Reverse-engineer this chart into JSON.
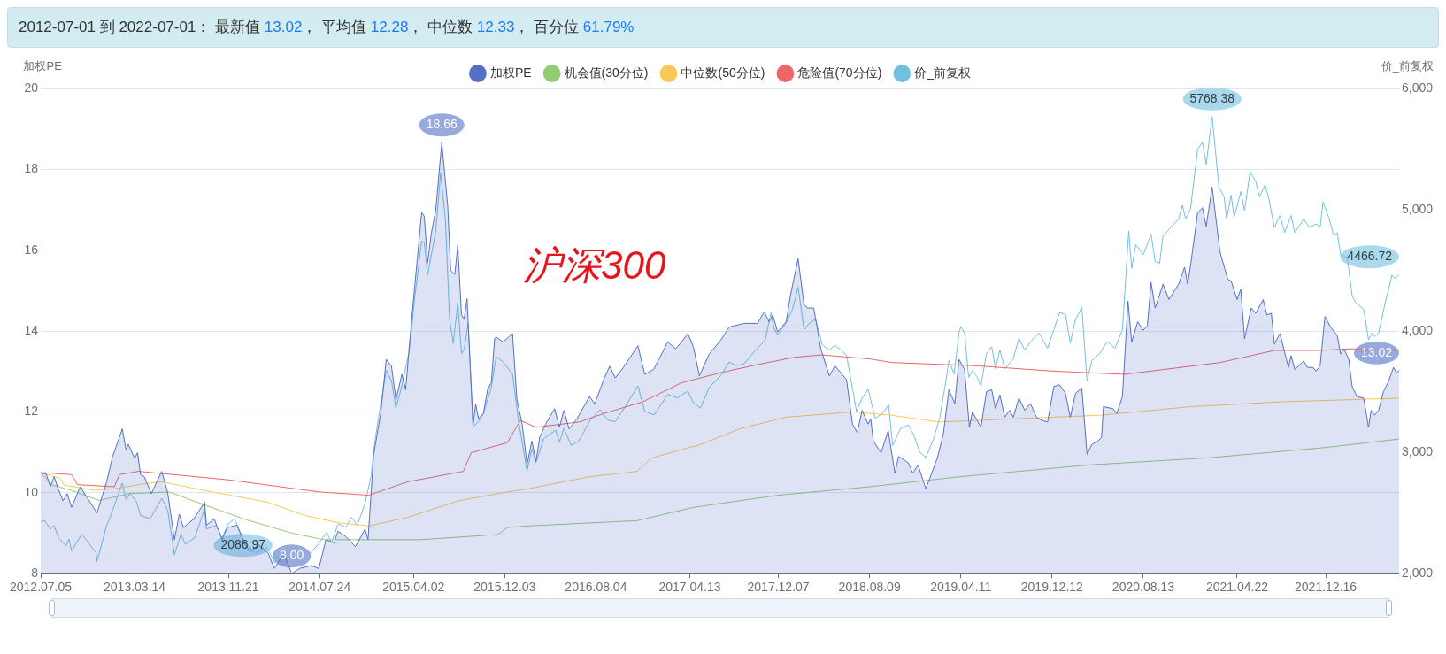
{
  "chart_data": {
    "type": "line",
    "title": "2012-07-01 到 2022-07-01： 最新值 13.02， 平均值 12.28， 中位数 12.33， 百分位 61.79%",
    "ylabel": "加权PE",
    "y2label": "价_前复权",
    "xlim": [
      "2012-07-05",
      "2022-07-01"
    ],
    "xticks": [
      {
        "value": "2012-07-05",
        "label": "2012.07.05"
      },
      {
        "value": "2013-03-14",
        "label": "2013.03.14"
      },
      {
        "value": "2013-11-21",
        "label": "2013.11.21"
      },
      {
        "value": "2014-07-24",
        "label": "2014.07.24"
      },
      {
        "value": "2015-04-02",
        "label": "2015.04.02"
      },
      {
        "value": "2015-12-03",
        "label": "2015.12.03"
      },
      {
        "value": "2016-08-04",
        "label": "2016.08.04"
      },
      {
        "value": "2017-04-13",
        "label": "2017.04.13"
      },
      {
        "value": "2017-12-07",
        "label": "2017.12.07"
      },
      {
        "value": "2018-08-09",
        "label": "2018.08.09"
      },
      {
        "value": "2019-04-11",
        "label": "2019.04.11"
      },
      {
        "value": "2019-12-12",
        "label": "2019.12.12"
      },
      {
        "value": "2020-08-13",
        "label": "2020.08.13"
      },
      {
        "value": "2021-04-22",
        "label": "2021.04.22"
      },
      {
        "value": "2021-12-16",
        "label": "2021.12.16"
      }
    ],
    "ylim": [
      8,
      20
    ],
    "yticks": [
      8,
      10,
      12,
      14,
      16,
      18,
      20
    ],
    "y2lim": [
      2000,
      6000
    ],
    "y2ticks": [
      {
        "value": 2000,
        "label": "2,000"
      },
      {
        "value": 3000,
        "label": "3,000"
      },
      {
        "value": 4000,
        "label": "4,000"
      },
      {
        "value": 5000,
        "label": "5,000"
      },
      {
        "value": 6000,
        "label": "6,000"
      }
    ],
    "grid": "y",
    "legend": "top",
    "marker": "none",
    "annotations": [
      "沪深300"
    ],
    "series": [
      {
        "name": "加权PE",
        "type": "area",
        "color": "#5470c6",
        "x": [
          "2012-07-05",
          "2012-07-20",
          "2012-07-31",
          "2012-08-10",
          "2012-08-21",
          "2012-09-03",
          "2012-09-14",
          "2012-09-26",
          "2012-10-19",
          "2012-12-03",
          "2012-12-29",
          "2013-01-14",
          "2013-02-09",
          "2013-02-19",
          "2013-02-25",
          "2013-03-14",
          "2013-03-22",
          "2013-03-30",
          "2013-04-09",
          "2013-04-28",
          "2013-05-26",
          "2013-06-11",
          "2013-06-29",
          "2013-07-12",
          "2013-07-23",
          "2013-08-20",
          "2013-09-18",
          "2013-09-23",
          "2013-10-14",
          "2013-11-04",
          "2013-11-18",
          "2013-12-14",
          "2014-01-04",
          "2014-01-20",
          "2014-02-10",
          "2014-03-08",
          "2014-03-24",
          "2014-04-19",
          "2014-05-10",
          "2014-05-31",
          "2014-07-01",
          "2014-07-22",
          "2014-08-10",
          "2014-09-01",
          "2014-09-11",
          "2014-10-02",
          "2014-10-28",
          "2014-11-23",
          "2014-12-01",
          "2014-12-16",
          "2015-01-04",
          "2015-01-19",
          "2015-02-02",
          "2015-02-14",
          "2015-03-02",
          "2015-03-12",
          "2015-03-22",
          "2015-04-05",
          "2015-04-24",
          "2015-05-01",
          "2015-05-10",
          "2015-05-20",
          "2015-06-01",
          "2015-06-17",
          "2015-07-03",
          "2015-07-11",
          "2015-07-22",
          "2015-07-30",
          "2015-08-09",
          "2015-08-16",
          "2015-08-24",
          "2015-09-09",
          "2015-09-16",
          "2015-09-24",
          "2015-10-07",
          "2015-10-18",
          "2015-10-28",
          "2015-11-06",
          "2015-11-10",
          "2015-11-29",
          "2015-12-24",
          "2016-01-05",
          "2016-01-19",
          "2016-02-01",
          "2016-02-14",
          "2016-02-25",
          "2016-03-06",
          "2016-03-22",
          "2016-04-15",
          "2016-04-28",
          "2016-05-10",
          "2016-05-24",
          "2016-06-14",
          "2016-07-18",
          "2016-08-01",
          "2016-08-25",
          "2016-09-10",
          "2016-09-25",
          "2016-10-16",
          "2016-11-25",
          "2016-12-13",
          "2017-01-06",
          "2017-02-13",
          "2017-03-06",
          "2017-03-22",
          "2017-04-08",
          "2017-04-23",
          "2017-05-09",
          "2017-06-04",
          "2017-07-05",
          "2017-07-28",
          "2017-09-06",
          "2017-10-12",
          "2017-10-30",
          "2017-11-12",
          "2017-11-22",
          "2017-12-05",
          "2017-12-28",
          "2018-01-08",
          "2018-01-29",
          "2018-02-14",
          "2018-02-24",
          "2018-03-12",
          "2018-03-31",
          "2018-04-23",
          "2018-05-08",
          "2018-06-08",
          "2018-06-24",
          "2018-07-07",
          "2018-07-20",
          "2018-08-05",
          "2018-08-12",
          "2018-08-19",
          "2018-09-09",
          "2018-09-28",
          "2018-10-16",
          "2018-10-26",
          "2018-11-21",
          "2018-12-03",
          "2018-12-17",
          "2019-01-07",
          "2019-02-07",
          "2019-02-23",
          "2019-03-10",
          "2019-03-26",
          "2019-04-06",
          "2019-04-21",
          "2019-05-04",
          "2019-05-12",
          "2019-05-25",
          "2019-06-04",
          "2019-06-19",
          "2019-07-03",
          "2019-07-13",
          "2019-07-25",
          "2019-08-07",
          "2019-08-20",
          "2019-08-30",
          "2019-09-14",
          "2019-09-30",
          "2019-10-15",
          "2019-10-31",
          "2019-11-15",
          "2019-11-30",
          "2019-12-17",
          "2020-01-01",
          "2020-01-17",
          "2020-01-30",
          "2020-02-13",
          "2020-03-01",
          "2020-03-15",
          "2020-03-28",
          "2020-04-13",
          "2020-04-23",
          "2020-04-28",
          "2020-05-24",
          "2020-06-03",
          "2020-06-18",
          "2020-07-03",
          "2020-07-13",
          "2020-07-29",
          "2020-08-13",
          "2020-08-24",
          "2020-09-03",
          "2020-09-14",
          "2020-10-05",
          "2020-10-21",
          "2020-11-16",
          "2020-12-02",
          "2020-12-10",
          "2020-12-18",
          "2021-01-06",
          "2021-01-19",
          "2021-01-29",
          "2021-02-14",
          "2021-03-07",
          "2021-03-28",
          "2021-04-06",
          "2021-04-22",
          "2021-05-02",
          "2021-05-12",
          "2021-05-30",
          "2021-06-11",
          "2021-07-01",
          "2021-07-11",
          "2021-07-23",
          "2021-07-31",
          "2021-08-15",
          "2021-09-07",
          "2021-09-14",
          "2021-09-24",
          "2021-10-18",
          "2021-10-28",
          "2021-11-12",
          "2021-11-20",
          "2021-12-01",
          "2021-12-14",
          "2021-12-29",
          "2022-01-16",
          "2022-01-25",
          "2022-02-03",
          "2022-02-16",
          "2022-02-25",
          "2022-03-10",
          "2022-03-28",
          "2022-04-10",
          "2022-04-17",
          "2022-04-26",
          "2022-05-07",
          "2022-05-20",
          "2022-06-03",
          "2022-06-16",
          "2022-06-24",
          "2022-07-01"
        ],
        "values": [
          10.5,
          10.46,
          10.15,
          10.4,
          10.1,
          9.8,
          9.98,
          9.64,
          10.15,
          9.5,
          10.27,
          10.9,
          11.58,
          11.07,
          11.2,
          10.86,
          10.99,
          10.45,
          10.4,
          9.98,
          10.53,
          10.0,
          8.84,
          9.47,
          9.14,
          9.35,
          9.77,
          9.2,
          9.35,
          8.84,
          9.14,
          9.2,
          8.72,
          8.55,
          8.72,
          8.5,
          8.13,
          8.5,
          8.0,
          8.13,
          8.2,
          8.13,
          8.84,
          8.76,
          9.05,
          8.92,
          8.67,
          9.1,
          8.84,
          10.94,
          11.96,
          13.3,
          13.13,
          12.3,
          12.93,
          12.55,
          13.64,
          15.07,
          16.93,
          16.84,
          15.7,
          16.42,
          17.0,
          18.66,
          17.1,
          15.5,
          15.4,
          16.13,
          14.4,
          14.3,
          14.8,
          11.66,
          12.2,
          11.83,
          11.96,
          12.55,
          12.72,
          13.81,
          13.85,
          13.73,
          13.94,
          12.3,
          11.7,
          10.7,
          11.28,
          10.78,
          11.37,
          11.7,
          12.08,
          11.62,
          12.04,
          11.58,
          11.83,
          12.38,
          12.2,
          12.8,
          13.13,
          12.84,
          13.09,
          13.64,
          12.93,
          13.05,
          13.73,
          13.56,
          13.73,
          13.94,
          13.6,
          12.89,
          13.43,
          13.77,
          14.1,
          14.19,
          14.19,
          14.48,
          14.23,
          14.4,
          13.98,
          14.23,
          14.86,
          15.79,
          14.65,
          14.57,
          14.57,
          13.56,
          12.89,
          13.14,
          12.8,
          11.7,
          11.49,
          12.04,
          11.7,
          11.83,
          11.28,
          10.99,
          11.54,
          10.48,
          10.9,
          10.74,
          10.48,
          10.69,
          10.1,
          10.86,
          11.45,
          12.55,
          12.21,
          13.3,
          13.05,
          11.62,
          12.0,
          11.79,
          11.62,
          12.5,
          12.55,
          12.08,
          12.42,
          11.87,
          12.04,
          11.87,
          12.34,
          12.04,
          12.21,
          11.87,
          11.79,
          11.75,
          12.63,
          12.67,
          12.46,
          11.87,
          12.46,
          12.59,
          10.95,
          11.2,
          11.28,
          11.37,
          12.13,
          12.08,
          11.96,
          12.38,
          14.74,
          13.73,
          14.23,
          14.02,
          14.14,
          15.2,
          14.57,
          15.16,
          14.78,
          15.16,
          15.58,
          15.16,
          15.62,
          16.93,
          17.05,
          16.59,
          17.56,
          15.96,
          15.28,
          15.24,
          14.78,
          15.03,
          13.81,
          14.57,
          14.44,
          14.78,
          14.4,
          14.44,
          13.68,
          13.94,
          13.1,
          13.39,
          13.05,
          13.26,
          13.1,
          13.1,
          13.01,
          13.14,
          14.36,
          14.1,
          13.89,
          13.43,
          13.56,
          13.3,
          12.63,
          12.38,
          12.34,
          11.62,
          12.04,
          11.92,
          12.04,
          12.5,
          12.76,
          13.1,
          12.97,
          13.02
        ],
        "value_labels": [
          null,
          null,
          null,
          null,
          null,
          null,
          null,
          null,
          null,
          null,
          null,
          null,
          null,
          null,
          null,
          null,
          null,
          null,
          null,
          null,
          null,
          null,
          null,
          null,
          null,
          null,
          null,
          null,
          null,
          null,
          null,
          null,
          null,
          null,
          null,
          null,
          null,
          null,
          "8.00",
          null,
          null,
          null,
          null,
          null,
          null,
          null,
          null,
          null,
          null,
          null,
          null,
          null,
          null,
          null,
          null,
          null,
          null,
          null,
          null,
          null,
          null,
          null,
          null,
          "18.66",
          null,
          null,
          null,
          null,
          null,
          null,
          null,
          null,
          null,
          null,
          null,
          null,
          null,
          null,
          null,
          null,
          null,
          null,
          null,
          null,
          null,
          null,
          null,
          null,
          null,
          null,
          null,
          null,
          null,
          null,
          null,
          null,
          null,
          null,
          null,
          null,
          null,
          null,
          null,
          null,
          null,
          null,
          null,
          null,
          null,
          null,
          null,
          null,
          null,
          null,
          null,
          null,
          null,
          null,
          null,
          null,
          null,
          null,
          null,
          null,
          null,
          null,
          null,
          null,
          null,
          null,
          null,
          null,
          null,
          null,
          null,
          null,
          null,
          null,
          null,
          null,
          null,
          null,
          null,
          null,
          null,
          null,
          null,
          null,
          null,
          null,
          null,
          null,
          null,
          null,
          null,
          null,
          null,
          null,
          null,
          null,
          null,
          null,
          null,
          null,
          null,
          null,
          null,
          null,
          null,
          null,
          null,
          null,
          null,
          null,
          null,
          null,
          null,
          null,
          null,
          null,
          null,
          null,
          null,
          null,
          null,
          null,
          null,
          null,
          null,
          null,
          null,
          null,
          null,
          null,
          null,
          null,
          null,
          null,
          null,
          null,
          null,
          null,
          null,
          null,
          null,
          null,
          null,
          null,
          null,
          null,
          null,
          null,
          null,
          null,
          null,
          null,
          null,
          null,
          null,
          null,
          null,
          null,
          null,
          null,
          null,
          null,
          null,
          null,
          null,
          null,
          null,
          null,
          null,
          "13.02"
        ]
      },
      {
        "name": "机会值(30分位)",
        "type": "line",
        "color": "#91cc75",
        "x": [
          "2012-07-05",
          "2012-08-05",
          "2012-09-26",
          "2012-12-08",
          "2013-03-01",
          "2013-06-16",
          "2013-08-28",
          "2014-01-02",
          "2014-05-07",
          "2014-08-05",
          "2015-04-21",
          "2015-11-16",
          "2015-12-10",
          "2016-02-04",
          "2016-11-22",
          "2017-04-23",
          "2017-12-07",
          "2018-08-09",
          "2019-04-11",
          "2020-03-23",
          "2021-01-29",
          "2021-12-16",
          "2022-07-01"
        ],
        "values": [
          10.5,
          10.19,
          10.06,
          9.81,
          9.98,
          10.02,
          9.77,
          9.35,
          9.01,
          8.84,
          8.84,
          8.97,
          9.14,
          9.18,
          9.31,
          9.64,
          9.94,
          10.15,
          10.4,
          10.69,
          10.86,
          11.12,
          11.33
        ]
      },
      {
        "name": "中位数(50分位)",
        "type": "line",
        "color": "#fac858",
        "x": [
          "2012-07-05",
          "2012-08-26",
          "2012-09-06",
          "2012-11-28",
          "2013-01-19",
          "2013-04-14",
          "2013-05-26",
          "2013-10-09",
          "2014-03-05",
          "2014-06-18",
          "2014-09-12",
          "2014-12-03",
          "2015-03-17",
          "2015-08-04",
          "2015-12-10",
          "2016-02-04",
          "2016-07-20",
          "2016-11-22",
          "2017-01-01",
          "2017-05-14",
          "2017-08-25",
          "2017-12-28",
          "2018-06-24",
          "2018-10-05",
          "2019-02-13",
          "2019-05-25",
          "2020-04-23",
          "2020-12-18",
          "2021-08-20",
          "2022-07-01"
        ],
        "values": [
          10.5,
          10.36,
          10.19,
          10.06,
          10.1,
          10.23,
          10.27,
          10.02,
          9.77,
          9.43,
          9.26,
          9.18,
          9.39,
          9.81,
          10.02,
          10.1,
          10.4,
          10.53,
          10.86,
          11.2,
          11.58,
          11.87,
          12.0,
          11.92,
          11.75,
          11.79,
          11.92,
          12.13,
          12.25,
          12.34
        ]
      },
      {
        "name": "危险值(70分位)",
        "type": "line",
        "color": "#ee6666",
        "x": [
          "2012-07-05",
          "2012-09-26",
          "2012-10-12",
          "2013-01-19",
          "2013-02-01",
          "2013-03-24",
          "2013-06-27",
          "2013-11-21",
          "2014-07-24",
          "2014-12-03",
          "2015-03-17",
          "2015-08-14",
          "2015-09-04",
          "2015-12-10",
          "2016-01-14",
          "2016-02-25",
          "2016-06-20",
          "2016-08-25",
          "2016-12-08",
          "2017-03-22",
          "2017-07-05",
          "2017-10-17",
          "2018-01-19",
          "2018-04-02",
          "2018-08-09",
          "2018-10-10",
          "2019-05-25",
          "2019-12-12",
          "2020-06-23",
          "2020-09-03",
          "2021-03-07",
          "2021-07-31",
          "2021-11-26",
          "2022-02-25",
          "2022-07-01"
        ],
        "values": [
          10.5,
          10.45,
          10.2,
          10.15,
          10.45,
          10.53,
          10.45,
          10.32,
          10.02,
          9.94,
          10.27,
          10.53,
          10.99,
          11.24,
          11.79,
          11.62,
          11.75,
          11.96,
          12.25,
          12.72,
          12.97,
          13.18,
          13.35,
          13.41,
          13.31,
          13.22,
          13.14,
          13.01,
          12.93,
          13.01,
          13.22,
          13.52,
          13.52,
          13.56,
          13.52
        ]
      },
      {
        "name": "价_前复权",
        "type": "line",
        "color": "#73c0de",
        "axis": "y2",
        "x": [
          "2012-07-05",
          "2012-07-15",
          "2012-07-31",
          "2012-08-10",
          "2012-08-21",
          "2012-09-11",
          "2012-09-19",
          "2012-09-26",
          "2012-10-23",
          "2012-12-01",
          "2012-12-03",
          "2012-12-29",
          "2013-01-14",
          "2013-02-09",
          "2013-02-19",
          "2013-03-01",
          "2013-03-19",
          "2013-03-30",
          "2013-04-25",
          "2013-05-26",
          "2013-06-11",
          "2013-06-29",
          "2013-07-17",
          "2013-07-28",
          "2013-08-23",
          "2013-09-18",
          "2013-09-23",
          "2013-10-19",
          "2013-11-04",
          "2013-11-21",
          "2013-12-07",
          "2014-01-02",
          "2014-02-02",
          "2014-03-05",
          "2014-03-26",
          "2014-04-16",
          "2014-05-07",
          "2014-06-18",
          "2014-07-20",
          "2014-08-12",
          "2014-08-25",
          "2014-09-12",
          "2014-10-02",
          "2014-10-18",
          "2014-11-02",
          "2014-11-23",
          "2014-12-09",
          "2014-12-19",
          "2015-01-01",
          "2015-01-19",
          "2015-02-02",
          "2015-02-14",
          "2015-03-02",
          "2015-03-22",
          "2015-04-05",
          "2015-04-24",
          "2015-05-01",
          "2015-05-10",
          "2015-05-20",
          "2015-06-01",
          "2015-06-14",
          "2015-06-27",
          "2015-07-08",
          "2015-07-18",
          "2015-07-30",
          "2015-08-09",
          "2015-08-16",
          "2015-08-27",
          "2015-09-09",
          "2015-09-24",
          "2015-10-07",
          "2015-10-28",
          "2015-11-10",
          "2015-11-29",
          "2015-12-24",
          "2016-01-08",
          "2016-02-01",
          "2016-02-14",
          "2016-02-25",
          "2016-03-17",
          "2016-04-18",
          "2016-04-28",
          "2016-05-10",
          "2016-05-30",
          "2016-06-20",
          "2016-07-20",
          "2016-08-15",
          "2016-09-05",
          "2016-09-25",
          "2016-10-16",
          "2016-11-25",
          "2016-12-13",
          "2017-01-08",
          "2017-02-13",
          "2017-03-11",
          "2017-04-08",
          "2017-04-23",
          "2017-05-12",
          "2017-06-04",
          "2017-07-05",
          "2017-07-28",
          "2017-08-16",
          "2017-09-06",
          "2017-10-07",
          "2017-11-02",
          "2017-11-17",
          "2017-11-25",
          "2017-12-05",
          "2017-12-28",
          "2018-01-14",
          "2018-01-29",
          "2018-02-14",
          "2018-03-01",
          "2018-03-17",
          "2018-04-04",
          "2018-04-23",
          "2018-05-08",
          "2018-06-08",
          "2018-07-05",
          "2018-07-20",
          "2018-08-05",
          "2018-08-24",
          "2018-09-14",
          "2018-09-29",
          "2018-10-10",
          "2018-10-31",
          "2018-11-21",
          "2018-12-06",
          "2018-12-22",
          "2019-01-07",
          "2019-01-28",
          "2019-02-13",
          "2019-02-28",
          "2019-03-10",
          "2019-03-24",
          "2019-04-06",
          "2019-04-11",
          "2019-04-21",
          "2019-05-02",
          "2019-05-12",
          "2019-05-25",
          "2019-06-04",
          "2019-06-19",
          "2019-07-03",
          "2019-07-13",
          "2019-07-25",
          "2019-08-07",
          "2019-08-30",
          "2019-09-14",
          "2019-09-30",
          "2019-10-15",
          "2019-11-07",
          "2019-11-30",
          "2019-12-17",
          "2020-01-01",
          "2020-01-17",
          "2020-01-30",
          "2020-02-13",
          "2020-03-01",
          "2020-03-15",
          "2020-03-28",
          "2020-04-18",
          "2020-05-08",
          "2020-05-29",
          "2020-06-18",
          "2020-07-05",
          "2020-07-13",
          "2020-07-24",
          "2020-08-13",
          "2020-09-03",
          "2020-09-14",
          "2020-09-26",
          "2020-10-05",
          "2020-10-26",
          "2020-11-16",
          "2020-11-26",
          "2020-12-05",
          "2020-12-18",
          "2021-01-06",
          "2021-01-19",
          "2021-01-29",
          "2021-02-14",
          "2021-03-04",
          "2021-03-18",
          "2021-03-25",
          "2021-04-06",
          "2021-04-14",
          "2021-05-02",
          "2021-05-12",
          "2021-05-27",
          "2021-06-11",
          "2021-06-21",
          "2021-07-06",
          "2021-07-16",
          "2021-07-31",
          "2021-08-15",
          "2021-08-28",
          "2021-09-14",
          "2021-09-24",
          "2021-10-18",
          "2021-11-02",
          "2021-11-20",
          "2021-12-01",
          "2021-12-09",
          "2021-12-24",
          "2022-01-07",
          "2022-01-16",
          "2022-01-25",
          "2022-02-12",
          "2022-02-25",
          "2022-03-06",
          "2022-03-28",
          "2022-04-10",
          "2022-04-19",
          "2022-04-26",
          "2022-05-07",
          "2022-05-25",
          "2022-06-12",
          "2022-06-21",
          "2022-07-01"
        ],
        "values": [
          2424,
          2438,
          2368,
          2396,
          2298,
          2228,
          2284,
          2185,
          2326,
          2171,
          2101,
          2396,
          2522,
          2747,
          2607,
          2663,
          2593,
          2480,
          2452,
          2621,
          2522,
          2157,
          2326,
          2242,
          2298,
          2536,
          2368,
          2396,
          2298,
          2410,
          2452,
          2270,
          2171,
          2213,
          2086.97,
          2185,
          2120,
          2130,
          2242,
          2340,
          2256,
          2410,
          2382,
          2466,
          2396,
          2579,
          2803,
          3084,
          3337,
          3674,
          3590,
          3365,
          3548,
          3843,
          4264,
          4742,
          4728,
          4461,
          4629,
          4826,
          5303,
          4910,
          4096,
          3899,
          4236,
          3815,
          3843,
          4067,
          3211,
          3253,
          3323,
          3534,
          3787,
          3744,
          3646,
          3281,
          2846,
          3028,
          2916,
          3112,
          3183,
          3084,
          3197,
          3056,
          3098,
          3267,
          3351,
          3267,
          3253,
          3351,
          3548,
          3337,
          3309,
          3478,
          3449,
          3506,
          3407,
          3365,
          3534,
          3632,
          3744,
          3716,
          3730,
          3843,
          3927,
          4152,
          4025,
          3969,
          4067,
          4180,
          4362,
          4011,
          4067,
          4096,
          3885,
          3843,
          3885,
          3801,
          3337,
          3449,
          3520,
          3281,
          3323,
          3393,
          3056,
          3197,
          3225,
          3140,
          3000,
          2958,
          3112,
          3281,
          3548,
          3758,
          3646,
          3983,
          4039,
          3983,
          3618,
          3674,
          3618,
          3548,
          3815,
          3871,
          3688,
          3843,
          3688,
          3772,
          3941,
          3843,
          3913,
          3983,
          3857,
          4011,
          4152,
          4138,
          3899,
          4096,
          4194,
          3590,
          3758,
          3815,
          3913,
          3857,
          4011,
          4826,
          4517,
          4713,
          4629,
          4798,
          4573,
          4559,
          4784,
          4854,
          4924,
          5037,
          4924,
          5008,
          5500,
          5556,
          5374,
          5768.38,
          5191,
          5107,
          4924,
          5121,
          4938,
          5149,
          4994,
          5317,
          5233,
          5107,
          5205,
          5093,
          4854,
          4952,
          4812,
          4952,
          4812,
          4924,
          4854,
          4882,
          4854,
          5065,
          4938,
          4784,
          4812,
          4629,
          4601,
          4292,
          4236,
          4180,
          3927,
          3983,
          3955,
          3983,
          4236,
          4461,
          4433,
          4466.72
        ],
        "value_labels": [
          null,
          null,
          null,
          null,
          null,
          null,
          null,
          null,
          null,
          null,
          null,
          null,
          null,
          null,
          null,
          null,
          null,
          null,
          null,
          null,
          null,
          null,
          null,
          null,
          null,
          null,
          null,
          null,
          null,
          null,
          null,
          null,
          null,
          null,
          "2086.97",
          null,
          null,
          null,
          null,
          null,
          null,
          null,
          null,
          null,
          null,
          null,
          null,
          null,
          null,
          null,
          null,
          null,
          null,
          null,
          null,
          null,
          null,
          null,
          null,
          null,
          null,
          null,
          null,
          null,
          null,
          null,
          null,
          null,
          null,
          null,
          null,
          null,
          null,
          null,
          null,
          null,
          null,
          null,
          null,
          null,
          null,
          null,
          null,
          null,
          null,
          null,
          null,
          null,
          null,
          null,
          null,
          null,
          null,
          null,
          null,
          null,
          null,
          null,
          null,
          null,
          null,
          null,
          null,
          null,
          null,
          null,
          null,
          null,
          null,
          null,
          null,
          null,
          null,
          null,
          null,
          null,
          null,
          null,
          null,
          null,
          null,
          null,
          null,
          null,
          null,
          null,
          null,
          null,
          null,
          null,
          null,
          null,
          null,
          null,
          null,
          null,
          null,
          null,
          null,
          null,
          null,
          null,
          null,
          null,
          null,
          null,
          null,
          null,
          null,
          null,
          null,
          null,
          null,
          null,
          null,
          null,
          null,
          null,
          null,
          null,
          null,
          null,
          null,
          null,
          null,
          null,
          null,
          null,
          null,
          null,
          null,
          null,
          null,
          null,
          null,
          null,
          null,
          null,
          null,
          null,
          null,
          "5768.38",
          null,
          null,
          null,
          null,
          null,
          null,
          null,
          null,
          null,
          null,
          null,
          null,
          null,
          null,
          null,
          null,
          null,
          null,
          null,
          null,
          null,
          null,
          null,
          null,
          null,
          null,
          null,
          null,
          null,
          null,
          null,
          null,
          null,
          null,
          null,
          null,
          null,
          "4466.72"
        ]
      }
    ]
  }
}
